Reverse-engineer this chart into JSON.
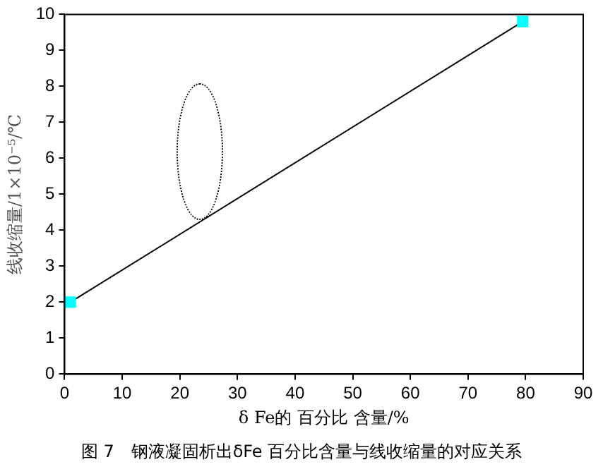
{
  "chart_data": {
    "type": "line",
    "xlabel": "δ Fe的 百分比 含量/%",
    "ylabel": "线收缩量/1×10⁻⁵/℃",
    "annotations": [
      "图 7　钢液凝固析出δFe 百分比含量与线收缩量的对应关系"
    ],
    "x": [
      1,
      79.5
    ],
    "series": [
      {
        "color": "#00ffff",
        "values": [
          2,
          9.8
        ]
      }
    ],
    "xlim": [
      0,
      90
    ],
    "xticks": [
      0,
      10,
      20,
      30,
      40,
      50,
      60,
      70,
      80,
      90
    ],
    "ylim": [
      0,
      10
    ],
    "yticks": [
      0,
      1,
      2,
      3,
      4,
      5,
      6,
      7,
      8,
      9,
      10
    ],
    "grid": false,
    "legend": false,
    "marker": "square",
    "line_style": "solid"
  }
}
